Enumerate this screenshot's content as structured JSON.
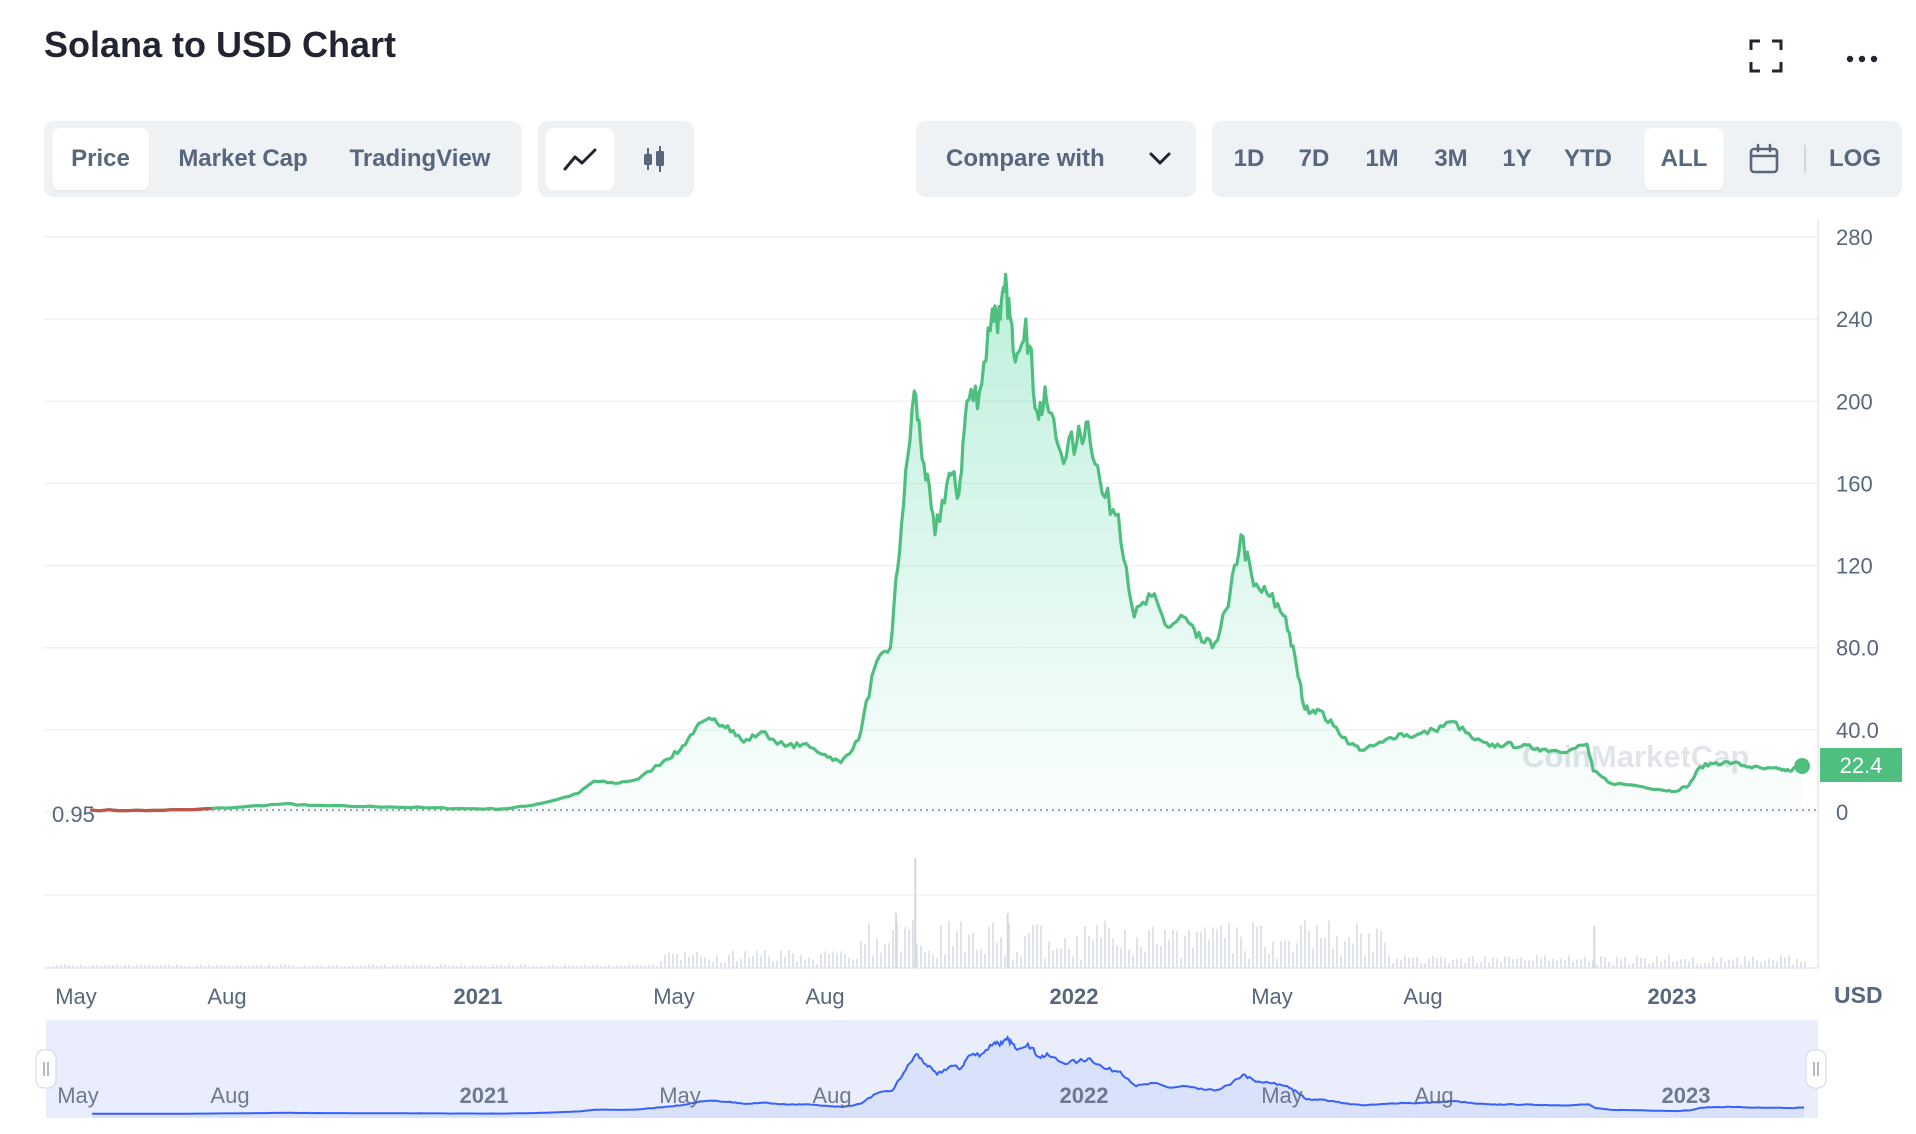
{
  "header": {
    "title": "Solana to USD Chart",
    "fullscreen_icon": "fullscreen-icon",
    "more_icon": "more-options-icon"
  },
  "tabs": {
    "metric": [
      {
        "label": "Price",
        "active": true
      },
      {
        "label": "Market Cap",
        "active": false
      },
      {
        "label": "TradingView",
        "active": false
      }
    ],
    "chart_style": [
      {
        "icon": "line-chart-icon",
        "active": true
      },
      {
        "icon": "candlestick-icon",
        "active": false
      }
    ],
    "compare": {
      "label": "Compare with",
      "icon": "chevron-down-icon"
    },
    "ranges": [
      {
        "label": "1D",
        "active": false
      },
      {
        "label": "7D",
        "active": false
      },
      {
        "label": "1M",
        "active": false
      },
      {
        "label": "3M",
        "active": false
      },
      {
        "label": "1Y",
        "active": false
      },
      {
        "label": "YTD",
        "active": false
      },
      {
        "label": "ALL",
        "active": true
      }
    ],
    "calendar_icon": "calendar-icon",
    "log_label": "LOG"
  },
  "colors": {
    "line": "#4fbf7f",
    "line_start": "#c0544a",
    "area_top": "#16c784",
    "navigator_line": "#3861fb",
    "navigator_fill": "#e3e8fb",
    "axis_text": "#58667e",
    "grid": "#eff2f5"
  },
  "chart_data": {
    "type": "area",
    "title": "",
    "xlabel": "",
    "ylabel": "USD",
    "currency_label": "USD",
    "ylim": [
      0,
      280
    ],
    "y_ticks": [
      "280",
      "240",
      "200",
      "160",
      "120",
      "80.0",
      "40.0",
      "0"
    ],
    "x_ticks": [
      {
        "label": "May",
        "bold": false
      },
      {
        "label": "Aug",
        "bold": false
      },
      {
        "label": "2021",
        "bold": true
      },
      {
        "label": "May",
        "bold": false
      },
      {
        "label": "Aug",
        "bold": false
      },
      {
        "label": "2022",
        "bold": true
      },
      {
        "label": "May",
        "bold": false
      },
      {
        "label": "Aug",
        "bold": false
      },
      {
        "label": "2023",
        "bold": true
      }
    ],
    "navigator_ticks": [
      "May",
      "Aug",
      "2021",
      "May",
      "Aug",
      "2022",
      "May",
      "Aug",
      "2023"
    ],
    "start_price_label": "0.95",
    "current_price_label": "22.4",
    "watermark": "CoinMarketCap",
    "series": [
      {
        "x": [
          "2020-04-10",
          "2020-05-15",
          "2020-06-15",
          "2020-07-15",
          "2020-08-10",
          "2020-08-25",
          "2020-09-20",
          "2020-10-15",
          "2020-11-10",
          "2020-12-01",
          "2020-12-25",
          "2021-01-10",
          "2021-01-25",
          "2021-02-10",
          "2021-02-20",
          "2021-03-05",
          "2021-03-20",
          "2021-04-05",
          "2021-04-15",
          "2021-04-25",
          "2021-05-05",
          "2021-05-15",
          "2021-05-25",
          "2021-06-05",
          "2021-06-20",
          "2021-07-01",
          "2021-07-15",
          "2021-07-25",
          "2021-08-05",
          "2021-08-15",
          "2021-08-25",
          "2021-09-01",
          "2021-09-09",
          "2021-09-15",
          "2021-09-22",
          "2021-10-01",
          "2021-10-07",
          "2021-10-12",
          "2021-10-20",
          "2021-10-28",
          "2021-11-02",
          "2021-11-06",
          "2021-11-10",
          "2021-11-18",
          "2021-11-25",
          "2021-12-01",
          "2021-12-10",
          "2021-12-20",
          "2021-12-27",
          "2022-01-05",
          "2022-01-15",
          "2022-01-25",
          "2022-02-05",
          "2022-02-15",
          "2022-02-25",
          "2022-03-05",
          "2022-03-15",
          "2022-03-25",
          "2022-04-02",
          "2022-04-10",
          "2022-04-20",
          "2022-04-30",
          "2022-05-07",
          "2022-05-12",
          "2022-05-20",
          "2022-05-30",
          "2022-06-10",
          "2022-06-18",
          "2022-06-30",
          "2022-07-10",
          "2022-07-20",
          "2022-08-01",
          "2022-08-13",
          "2022-08-25",
          "2022-09-05",
          "2022-09-15",
          "2022-09-25",
          "2022-10-05",
          "2022-10-15",
          "2022-10-25",
          "2022-11-05",
          "2022-11-09",
          "2022-11-20",
          "2022-12-05",
          "2022-12-20",
          "2022-12-30",
          "2023-01-08",
          "2023-01-15",
          "2023-01-25",
          "2023-02-05",
          "2023-02-15",
          "2023-02-25",
          "2023-03-05",
          "2023-03-12",
          "2023-03-20"
        ],
        "y": [
          0.95,
          0.7,
          1.2,
          2.5,
          4.0,
          3.2,
          2.8,
          2.5,
          2.0,
          1.6,
          1.5,
          3.0,
          5.5,
          9.0,
          15.0,
          14.0,
          16.0,
          25.0,
          30.0,
          41.0,
          45.0,
          42.0,
          34.0,
          39.0,
          32.0,
          33.0,
          28.0,
          24.0,
          35.0,
          70.0,
          80.0,
          140.0,
          205.0,
          170.0,
          135.0,
          165.0,
          155.0,
          200.0,
          205.0,
          245.0,
          240.0,
          255.0,
          225.0,
          240.0,
          195.0,
          200.0,
          175.0,
          180.0,
          190.0,
          155.0,
          145.0,
          95.0,
          105.0,
          90.0,
          95.0,
          85.0,
          80.0,
          100.0,
          135.0,
          110.0,
          105.0,
          95.0,
          70.0,
          50.0,
          50.0,
          42.0,
          33.0,
          30.0,
          34.0,
          38.0,
          37.0,
          40.0,
          44.0,
          36.0,
          32.0,
          33.0,
          32.0,
          31.0,
          30.0,
          30.0,
          33.0,
          20.0,
          14.0,
          13.0,
          11.0,
          10.0,
          13.0,
          22.0,
          24.0,
          24.0,
          22.0,
          21.0,
          21.0,
          20.0,
          22.4
        ]
      }
    ]
  }
}
